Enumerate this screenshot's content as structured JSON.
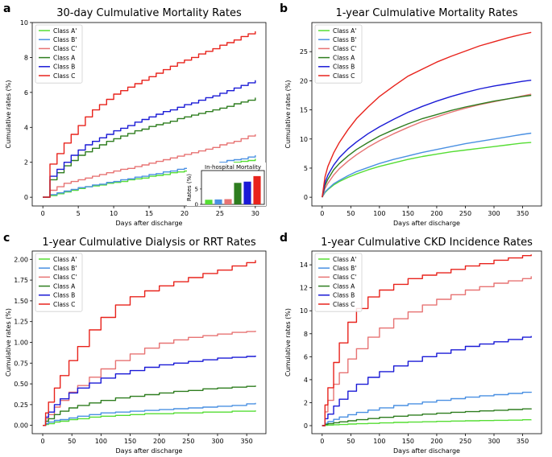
{
  "chart_data": [
    {
      "panel_label": "a",
      "type": "line",
      "title": "30-day Culmulative Mortality Rates",
      "xlabel": "Days after discharge",
      "ylabel": "Cumulative rates (%)",
      "xlim": [
        -1.5,
        31.5
      ],
      "ylim": [
        -0.5,
        10.0
      ],
      "xticks": [
        0,
        5,
        10,
        15,
        20,
        25,
        30
      ],
      "yticks": [
        0,
        2,
        4,
        6,
        8,
        10
      ],
      "legend_position": "top-left",
      "step": true,
      "x": [
        0,
        1,
        2,
        3,
        4,
        5,
        6,
        7,
        8,
        9,
        10,
        11,
        12,
        13,
        14,
        15,
        16,
        17,
        18,
        19,
        20,
        21,
        22,
        23,
        24,
        25,
        26,
        27,
        28,
        29,
        30
      ],
      "series": [
        {
          "name": "Class A'",
          "color": "#55dd33",
          "values": [
            0,
            0.1,
            0.2,
            0.3,
            0.4,
            0.5,
            0.6,
            0.65,
            0.7,
            0.8,
            0.85,
            0.9,
            1.0,
            1.05,
            1.1,
            1.2,
            1.25,
            1.3,
            1.4,
            1.45,
            1.5,
            1.6,
            1.65,
            1.7,
            1.8,
            1.85,
            1.9,
            2.0,
            2.05,
            2.1,
            2.2
          ]
        },
        {
          "name": "Class B'",
          "color": "#4a90e2",
          "values": [
            0,
            0.15,
            0.25,
            0.35,
            0.45,
            0.55,
            0.6,
            0.7,
            0.75,
            0.85,
            0.9,
            1.0,
            1.05,
            1.15,
            1.2,
            1.3,
            1.35,
            1.45,
            1.5,
            1.6,
            1.65,
            1.7,
            1.8,
            1.85,
            1.95,
            2.0,
            2.1,
            2.15,
            2.2,
            2.3,
            2.4
          ]
        },
        {
          "name": "Class C'",
          "color": "#e77373",
          "values": [
            0,
            0.4,
            0.6,
            0.8,
            0.9,
            1.0,
            1.1,
            1.2,
            1.3,
            1.4,
            1.5,
            1.6,
            1.65,
            1.75,
            1.85,
            1.95,
            2.05,
            2.15,
            2.25,
            2.35,
            2.45,
            2.55,
            2.65,
            2.75,
            2.85,
            3.0,
            3.1,
            3.2,
            3.35,
            3.5,
            3.6
          ]
        },
        {
          "name": "Class A",
          "color": "#2e7d1f",
          "values": [
            0,
            1.0,
            1.4,
            1.8,
            2.1,
            2.4,
            2.6,
            2.8,
            3.0,
            3.2,
            3.35,
            3.5,
            3.65,
            3.8,
            3.9,
            4.05,
            4.15,
            4.25,
            4.35,
            4.5,
            4.6,
            4.7,
            4.8,
            4.9,
            5.0,
            5.1,
            5.2,
            5.35,
            5.45,
            5.55,
            5.7
          ]
        },
        {
          "name": "Class B",
          "color": "#1a1ad6",
          "values": [
            0,
            1.2,
            1.6,
            2.0,
            2.4,
            2.7,
            3.0,
            3.2,
            3.4,
            3.6,
            3.8,
            3.95,
            4.1,
            4.3,
            4.45,
            4.6,
            4.75,
            4.9,
            5.0,
            5.15,
            5.3,
            5.4,
            5.55,
            5.7,
            5.8,
            5.95,
            6.1,
            6.25,
            6.4,
            6.55,
            6.7
          ]
        },
        {
          "name": "Class C",
          "color": "#e8231c",
          "values": [
            0,
            1.9,
            2.5,
            3.1,
            3.6,
            4.1,
            4.6,
            5.0,
            5.3,
            5.6,
            5.9,
            6.1,
            6.3,
            6.5,
            6.7,
            6.9,
            7.1,
            7.3,
            7.5,
            7.7,
            7.85,
            8.0,
            8.2,
            8.35,
            8.5,
            8.7,
            8.85,
            9.0,
            9.2,
            9.35,
            9.5
          ]
        }
      ],
      "inset": {
        "title": "In-hospital Mortality",
        "ylabel": "Rates (%)",
        "ylim": [
          0,
          11
        ],
        "yticks": [
          0,
          5
        ],
        "type": "bar",
        "categories": [
          "Class A'",
          "Class B'",
          "Class C'",
          "Class A",
          "Class B",
          "Class C"
        ],
        "values": [
          1.5,
          1.6,
          1.7,
          7.0,
          7.4,
          9.2
        ]
      }
    },
    {
      "panel_label": "b",
      "type": "line",
      "title": "1-year Culmulative Mortality Rates",
      "xlabel": "Days after discharge",
      "ylabel": "Cumulative rates (%)",
      "xlim": [
        -18,
        383
      ],
      "ylim": [
        -1.5,
        30
      ],
      "xticks": [
        0,
        50,
        100,
        150,
        200,
        250,
        300,
        350
      ],
      "yticks": [
        0,
        5,
        10,
        15,
        20,
        25
      ],
      "legend_position": "top-left",
      "step": false,
      "x": [
        0,
        5,
        10,
        20,
        30,
        45,
        60,
        80,
        100,
        125,
        150,
        175,
        200,
        225,
        250,
        275,
        300,
        325,
        350,
        365
      ],
      "series": [
        {
          "name": "Class A'",
          "color": "#55dd33",
          "values": [
            0,
            0.8,
            1.3,
            2.1,
            2.7,
            3.4,
            4.0,
            4.7,
            5.3,
            5.9,
            6.5,
            7.0,
            7.4,
            7.8,
            8.1,
            8.4,
            8.7,
            9.0,
            9.3,
            9.4
          ]
        },
        {
          "name": "Class B'",
          "color": "#4a90e2",
          "values": [
            0,
            0.9,
            1.4,
            2.3,
            2.9,
            3.7,
            4.4,
            5.1,
            5.8,
            6.5,
            7.1,
            7.7,
            8.2,
            8.7,
            9.2,
            9.6,
            10.0,
            10.4,
            10.8,
            11.0
          ]
        },
        {
          "name": "Class C'",
          "color": "#e77373",
          "values": [
            0,
            1.5,
            2.4,
            3.8,
            4.9,
            6.2,
            7.3,
            8.6,
            9.7,
            10.9,
            12.0,
            13.0,
            13.8,
            14.6,
            15.3,
            15.9,
            16.4,
            16.9,
            17.4,
            17.7
          ]
        },
        {
          "name": "Class A",
          "color": "#2e7d1f",
          "values": [
            0,
            2.0,
            3.1,
            4.7,
            5.8,
            7.1,
            8.2,
            9.4,
            10.5,
            11.6,
            12.6,
            13.5,
            14.2,
            14.9,
            15.5,
            16.0,
            16.5,
            16.9,
            17.3,
            17.5
          ]
        },
        {
          "name": "Class B",
          "color": "#1a1ad6",
          "values": [
            0,
            2.5,
            3.8,
            5.5,
            6.8,
            8.3,
            9.5,
            10.9,
            12.1,
            13.4,
            14.6,
            15.6,
            16.5,
            17.3,
            18.0,
            18.6,
            19.1,
            19.5,
            19.9,
            20.1
          ]
        },
        {
          "name": "Class C",
          "color": "#e8231c",
          "values": [
            0,
            3.5,
            5.3,
            7.6,
            9.4,
            11.6,
            13.5,
            15.5,
            17.3,
            19.1,
            20.8,
            22.0,
            23.2,
            24.2,
            25.1,
            26.0,
            26.7,
            27.4,
            28.0,
            28.3
          ]
        }
      ]
    },
    {
      "panel_label": "c",
      "type": "line",
      "title": "1-year Culmulative Dialysis or RRT Rates",
      "xlabel": "Days after discharge",
      "ylabel": "Cumulative rates (%)",
      "xlim": [
        -18,
        383
      ],
      "ylim": [
        -0.1,
        2.1
      ],
      "xticks": [
        0,
        50,
        100,
        150,
        200,
        250,
        300,
        350
      ],
      "yticks": [
        0.0,
        0.25,
        0.5,
        0.75,
        1.0,
        1.25,
        1.5,
        1.75,
        2.0
      ],
      "legend_position": "top-left",
      "step": true,
      "x": [
        0,
        5,
        10,
        20,
        30,
        45,
        60,
        80,
        100,
        125,
        150,
        175,
        200,
        225,
        250,
        275,
        300,
        325,
        350,
        365
      ],
      "series": [
        {
          "name": "Class A'",
          "color": "#55dd33",
          "values": [
            0,
            0.01,
            0.02,
            0.04,
            0.05,
            0.07,
            0.08,
            0.1,
            0.11,
            0.12,
            0.13,
            0.14,
            0.14,
            0.15,
            0.15,
            0.16,
            0.16,
            0.17,
            0.17,
            0.18
          ]
        },
        {
          "name": "Class B'",
          "color": "#4a90e2",
          "values": [
            0,
            0.02,
            0.04,
            0.06,
            0.07,
            0.09,
            0.11,
            0.13,
            0.15,
            0.16,
            0.17,
            0.18,
            0.19,
            0.2,
            0.21,
            0.22,
            0.23,
            0.24,
            0.26,
            0.27
          ]
        },
        {
          "name": "Class C'",
          "color": "#e77373",
          "values": [
            0,
            0.08,
            0.13,
            0.22,
            0.3,
            0.4,
            0.48,
            0.58,
            0.68,
            0.78,
            0.86,
            0.93,
            0.99,
            1.03,
            1.06,
            1.08,
            1.1,
            1.12,
            1.13,
            1.14
          ]
        },
        {
          "name": "Class A",
          "color": "#2e7d1f",
          "values": [
            0,
            0.05,
            0.08,
            0.13,
            0.17,
            0.21,
            0.24,
            0.27,
            0.3,
            0.33,
            0.35,
            0.37,
            0.39,
            0.41,
            0.42,
            0.44,
            0.45,
            0.46,
            0.47,
            0.48
          ]
        },
        {
          "name": "Class B",
          "color": "#1a1ad6",
          "values": [
            0,
            0.1,
            0.16,
            0.25,
            0.32,
            0.39,
            0.45,
            0.51,
            0.57,
            0.62,
            0.66,
            0.7,
            0.73,
            0.75,
            0.77,
            0.79,
            0.81,
            0.82,
            0.83,
            0.84
          ]
        },
        {
          "name": "Class C",
          "color": "#e8231c",
          "values": [
            0,
            0.15,
            0.28,
            0.45,
            0.6,
            0.78,
            0.95,
            1.15,
            1.3,
            1.45,
            1.55,
            1.62,
            1.68,
            1.73,
            1.78,
            1.83,
            1.87,
            1.92,
            1.96,
            1.99
          ]
        }
      ]
    },
    {
      "panel_label": "d",
      "type": "line",
      "title": "1-year Culmulative CKD Incidence Rates",
      "xlabel": "Days after discharge",
      "ylabel": "Cumulative rates (%)",
      "xlim": [
        -18,
        383
      ],
      "ylim": [
        -0.7,
        15.2
      ],
      "xticks": [
        0,
        50,
        100,
        150,
        200,
        250,
        300,
        350
      ],
      "yticks": [
        0,
        2,
        4,
        6,
        8,
        10,
        12,
        14
      ],
      "legend_position": "top-left",
      "step": true,
      "x": [
        0,
        5,
        10,
        20,
        30,
        45,
        60,
        80,
        100,
        125,
        150,
        175,
        200,
        225,
        250,
        275,
        300,
        325,
        350,
        365
      ],
      "series": [
        {
          "name": "Class A'",
          "color": "#55dd33",
          "values": [
            0,
            0.03,
            0.05,
            0.08,
            0.1,
            0.14,
            0.17,
            0.2,
            0.24,
            0.28,
            0.31,
            0.34,
            0.37,
            0.4,
            0.42,
            0.44,
            0.46,
            0.48,
            0.51,
            0.52
          ]
        },
        {
          "name": "Class B'",
          "color": "#4a90e2",
          "values": [
            0,
            0.2,
            0.35,
            0.55,
            0.75,
            0.95,
            1.15,
            1.35,
            1.55,
            1.75,
            1.9,
            2.05,
            2.2,
            2.35,
            2.48,
            2.6,
            2.7,
            2.8,
            2.9,
            2.95
          ]
        },
        {
          "name": "Class C'",
          "color": "#e77373",
          "values": [
            0,
            1.2,
            2.2,
            3.6,
            4.6,
            5.8,
            6.7,
            7.7,
            8.5,
            9.3,
            9.9,
            10.5,
            11.0,
            11.4,
            11.8,
            12.1,
            12.4,
            12.6,
            12.8,
            13.0
          ]
        },
        {
          "name": "Class A",
          "color": "#2e7d1f",
          "values": [
            0,
            0.1,
            0.17,
            0.25,
            0.33,
            0.42,
            0.52,
            0.62,
            0.72,
            0.82,
            0.92,
            1.0,
            1.08,
            1.16,
            1.22,
            1.28,
            1.34,
            1.4,
            1.46,
            1.5
          ]
        },
        {
          "name": "Class B",
          "color": "#1a1ad6",
          "values": [
            0,
            0.6,
            1.0,
            1.7,
            2.3,
            3.0,
            3.6,
            4.2,
            4.7,
            5.2,
            5.6,
            6.0,
            6.3,
            6.6,
            6.9,
            7.1,
            7.3,
            7.5,
            7.7,
            7.8
          ]
        },
        {
          "name": "Class C",
          "color": "#e8231c",
          "values": [
            0,
            1.8,
            3.3,
            5.5,
            7.2,
            9.0,
            10.2,
            11.2,
            11.8,
            12.3,
            12.8,
            13.1,
            13.3,
            13.6,
            13.9,
            14.1,
            14.4,
            14.6,
            14.8,
            14.9
          ]
        }
      ]
    }
  ]
}
